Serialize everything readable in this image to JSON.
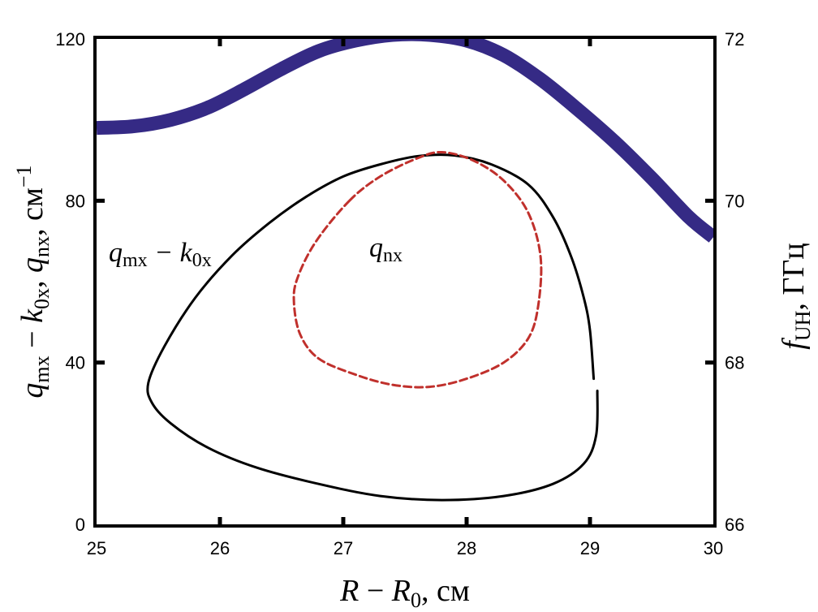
{
  "chart_data": {
    "type": "line",
    "title": "",
    "xlabel": "R − R0, см",
    "xlabel_parts": {
      "r": "R",
      "minus": " − ",
      "r0": "R",
      "r0_sub": "0",
      "unit": ", см"
    },
    "ylabel_left": "qmx − k0x, qnx, см−1",
    "ylabel_left_parts": {
      "q1": "q",
      "q1_sub": "mx",
      "minus": " − ",
      "k": "k",
      "k_sub": "0x",
      "sep": ", ",
      "q2": "q",
      "q2_sub": "nx",
      "unit": ", см",
      "unit_sup": "−1"
    },
    "ylabel_right": "fUH, ГГц",
    "ylabel_right_parts": {
      "f": "f",
      "f_sub": "UH",
      "unit": ", ГГц"
    },
    "xlim": [
      25,
      30
    ],
    "ylim_left": [
      0,
      120
    ],
    "ylim_right": [
      66,
      72
    ],
    "x_ticks": [
      "25",
      "26",
      "27",
      "28",
      "29",
      "30"
    ],
    "y_left_ticks": [
      "0",
      "40",
      "80",
      "120"
    ],
    "y_right_ticks": [
      "66",
      "68",
      "70",
      "72"
    ],
    "grid": false,
    "annotations": [
      {
        "id": "qmx",
        "base": "q",
        "sub1": "mx",
        "mid": " − k",
        "sub2": "0x",
        "x": 25.1,
        "y": 65.5
      },
      {
        "id": "qnx",
        "base": "q",
        "sub1": "nx",
        "mid": "",
        "sub2": "",
        "x": 27.15,
        "y": 66.5
      }
    ],
    "series": [
      {
        "axis": "right",
        "color": "#352a85",
        "style": "thick",
        "points": [
          [
            25.0,
            70.9
          ],
          [
            25.3,
            70.92
          ],
          [
            25.6,
            71.0
          ],
          [
            25.9,
            71.15
          ],
          [
            26.2,
            71.38
          ],
          [
            26.5,
            71.63
          ],
          [
            26.8,
            71.85
          ],
          [
            27.1,
            71.98
          ],
          [
            27.4,
            72.05
          ],
          [
            27.7,
            72.05
          ],
          [
            28.0,
            71.98
          ],
          [
            28.3,
            71.8
          ],
          [
            28.6,
            71.5
          ],
          [
            28.9,
            71.13
          ],
          [
            29.2,
            70.73
          ],
          [
            29.5,
            70.28
          ],
          [
            29.8,
            69.8
          ],
          [
            30.0,
            69.55
          ]
        ]
      },
      {
        "axis": "left",
        "color": "#000000",
        "style": "solid",
        "closed": false,
        "points": [
          [
            29.03,
            36
          ],
          [
            29.0,
            48
          ],
          [
            28.95,
            56
          ],
          [
            28.85,
            66
          ],
          [
            28.7,
            76
          ],
          [
            28.5,
            84
          ],
          [
            28.2,
            89
          ],
          [
            27.9,
            91.2
          ],
          [
            27.6,
            91
          ],
          [
            27.3,
            89
          ],
          [
            27.0,
            86
          ],
          [
            26.7,
            81
          ],
          [
            26.4,
            74.5
          ],
          [
            26.1,
            66.5
          ],
          [
            25.8,
            56
          ],
          [
            25.55,
            44
          ],
          [
            25.42,
            35
          ],
          [
            25.45,
            30
          ],
          [
            25.6,
            25
          ],
          [
            25.9,
            19
          ],
          [
            26.3,
            14
          ],
          [
            26.8,
            10
          ],
          [
            27.3,
            7
          ],
          [
            27.8,
            6
          ],
          [
            28.3,
            7
          ],
          [
            28.7,
            10
          ],
          [
            28.95,
            15
          ],
          [
            29.05,
            22
          ],
          [
            29.06,
            33
          ]
        ]
      },
      {
        "axis": "left",
        "color": "#c0302c",
        "style": "dashed",
        "closed": true,
        "points": [
          [
            27.05,
            80
          ],
          [
            27.3,
            86
          ],
          [
            27.6,
            90.5
          ],
          [
            27.8,
            92
          ],
          [
            28.05,
            90
          ],
          [
            28.3,
            85
          ],
          [
            28.5,
            77
          ],
          [
            28.6,
            66
          ],
          [
            28.58,
            54
          ],
          [
            28.5,
            46
          ],
          [
            28.3,
            40
          ],
          [
            28.0,
            36
          ],
          [
            27.7,
            34
          ],
          [
            27.4,
            34.5
          ],
          [
            27.1,
            37
          ],
          [
            26.8,
            41
          ],
          [
            26.65,
            47
          ],
          [
            26.6,
            55
          ],
          [
            26.63,
            61
          ],
          [
            26.78,
            70
          ],
          [
            27.05,
            80
          ]
        ]
      }
    ]
  }
}
